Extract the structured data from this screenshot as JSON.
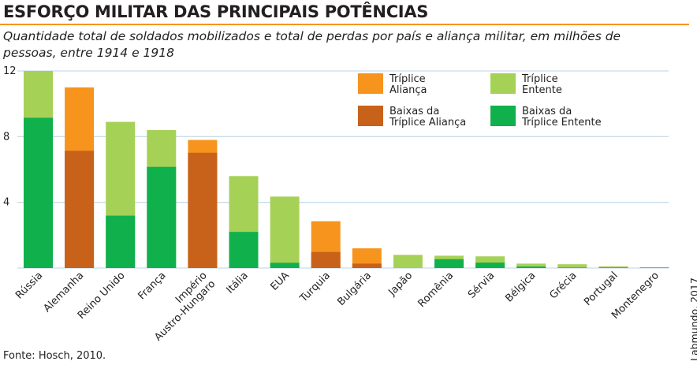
{
  "title": "ESFORÇO MILITAR DAS PRINCIPAIS POTÊNCIAS",
  "subtitle": "Quantidade total de soldados mobilizados e total de perdas por país e aliança militar, em milhões de pessoas, entre 1914 e 1918",
  "source": "Fonte: Hosch, 2010.",
  "credit": "Labmundo, 2017",
  "colors": {
    "triplice_alianca": "#f7941d",
    "baixas_triplice_alianca": "#c8621a",
    "triplice_entente": "#a6d157",
    "baixas_triplice_entente": "#10b04d",
    "gridline": "#c9dcea",
    "title_rule": "#f7941d"
  },
  "chart_data": {
    "type": "bar",
    "stacked": true,
    "title": "ESFORÇO MILITAR DAS PRINCIPAIS POTÊNCIAS",
    "ylabel": "milhões de pessoas",
    "ylim": [
      0,
      12
    ],
    "yticks": [
      4,
      8,
      12
    ],
    "grid": true,
    "categories": [
      {
        "label": "Rússia",
        "alliance": "entente",
        "total": 12.0,
        "losses": 9.15
      },
      {
        "label": "Alemanha",
        "alliance": "alianca",
        "total": 11.0,
        "losses": 7.14
      },
      {
        "label": "Reino Unido",
        "alliance": "entente",
        "total": 8.9,
        "losses": 3.19
      },
      {
        "label": "França",
        "alliance": "entente",
        "total": 8.4,
        "losses": 6.16
      },
      {
        "label": "Império\nAustro-Hungaro",
        "alliance": "alianca",
        "total": 7.8,
        "losses": 7.02
      },
      {
        "label": "Itália",
        "alliance": "entente",
        "total": 5.6,
        "losses": 2.2
      },
      {
        "label": "EUA",
        "alliance": "entente",
        "total": 4.35,
        "losses": 0.32
      },
      {
        "label": "Turquia",
        "alliance": "alianca",
        "total": 2.85,
        "losses": 0.98
      },
      {
        "label": "Bulgária",
        "alliance": "alianca",
        "total": 1.2,
        "losses": 0.27
      },
      {
        "label": "Japão",
        "alliance": "entente",
        "total": 0.8,
        "losses": 0.001
      },
      {
        "label": "Romênia",
        "alliance": "entente",
        "total": 0.75,
        "losses": 0.54
      },
      {
        "label": "Sérvia",
        "alliance": "entente",
        "total": 0.71,
        "losses": 0.33
      },
      {
        "label": "Bélgica",
        "alliance": "entente",
        "total": 0.27,
        "losses": 0.09
      },
      {
        "label": "Grécia",
        "alliance": "entente",
        "total": 0.23,
        "losses": 0.03
      },
      {
        "label": "Portugal",
        "alliance": "entente",
        "total": 0.1,
        "losses": 0.03
      },
      {
        "label": "Montenegro",
        "alliance": "entente",
        "total": 0.05,
        "losses": 0.02
      }
    ],
    "legend": [
      {
        "key": "alianca_total",
        "label": "Tríplice\nAliança",
        "color": "#f7941d"
      },
      {
        "key": "entente_total",
        "label": "Tríplice\nEntente",
        "color": "#a6d157"
      },
      {
        "key": "alianca_losses",
        "label": "Baixas da\nTríplice Aliança",
        "color": "#c8621a"
      },
      {
        "key": "entente_losses",
        "label": "Baixas da\nTríplice Entente",
        "color": "#10b04d"
      }
    ],
    "legend_position": "top-right"
  }
}
